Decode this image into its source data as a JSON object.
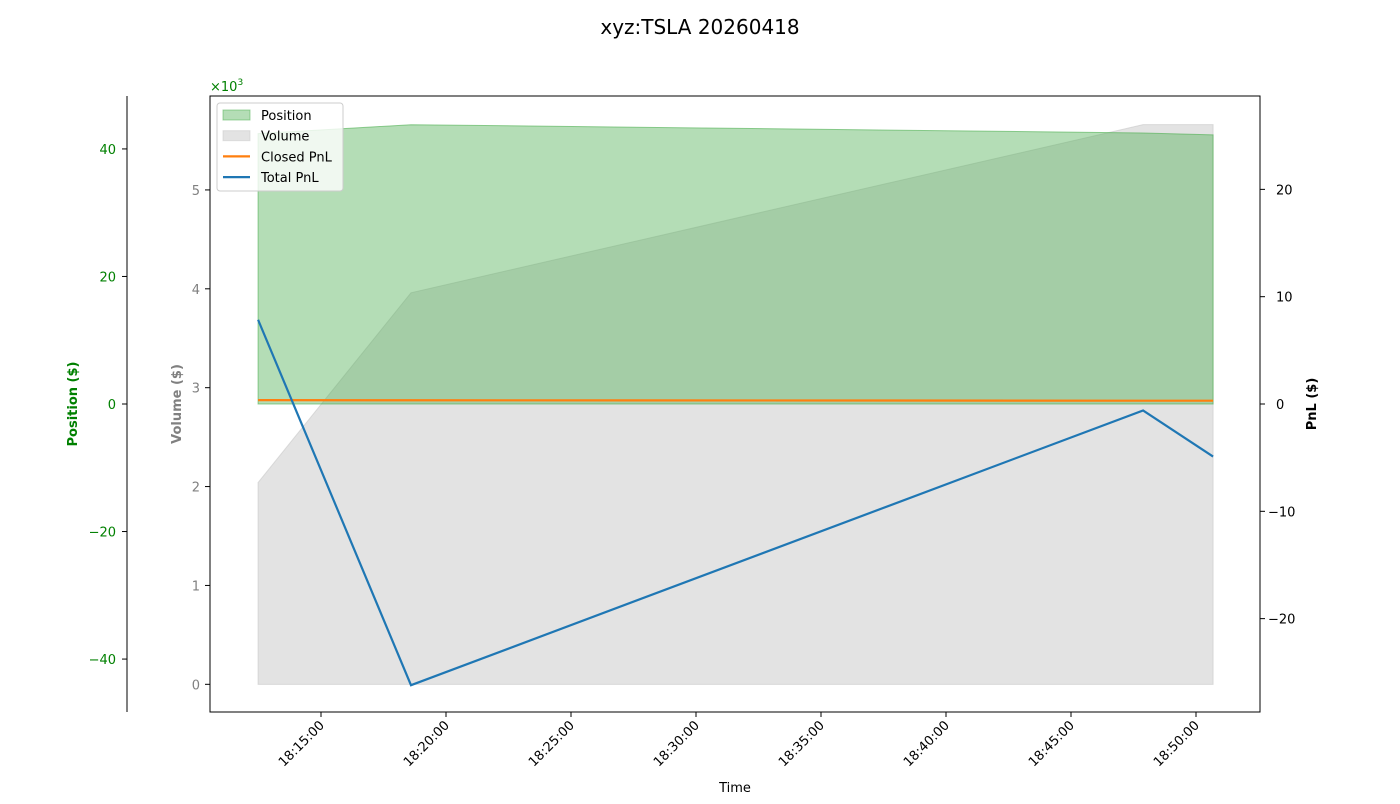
{
  "chart_data": {
    "type": "line",
    "title": "xyz:TSLA 20260418",
    "xlabel": "Time",
    "x": [
      "18:12:29",
      "18:18:36",
      "18:47:53",
      "18:50:41"
    ],
    "x_ticks": [
      "18:15:00",
      "18:20:00",
      "18:25:00",
      "18:30:00",
      "18:35:00",
      "18:40:00",
      "18:45:00",
      "18:50:00"
    ],
    "axes": {
      "position": {
        "label": "Position ($)",
        "ticks": [
          40,
          20,
          0,
          -20,
          -40
        ],
        "ylim": [
          -48.3,
          48.3
        ],
        "color": "#008000"
      },
      "volume": {
        "label": "Volume ($)",
        "ticks": [
          0,
          1,
          2,
          3,
          4,
          5
        ],
        "multiplier": "×10",
        "multiplier_exp": "3",
        "ylim": [
          -280,
          5950
        ],
        "color": "#808080"
      },
      "pnl": {
        "label": "PnL ($)",
        "ticks": [
          20,
          10,
          0,
          -10,
          -20
        ],
        "ylim": [
          -28.7,
          28.7
        ],
        "color": "#000000"
      }
    },
    "series": [
      {
        "name": "Position",
        "kind": "area",
        "axis": "position",
        "values": [
          42.4,
          43.8,
          42.5,
          42.2
        ],
        "color": "#4caf50"
      },
      {
        "name": "Volume",
        "kind": "area",
        "axis": "volume",
        "values": [
          2040,
          3960,
          5660,
          5660
        ],
        "color": "#c8c8c8"
      },
      {
        "name": "Closed PnL",
        "kind": "line",
        "axis": "pnl",
        "values": [
          0.36,
          0.35,
          0.31,
          0.31
        ],
        "color": "#ff7f0e"
      },
      {
        "name": "Total PnL",
        "kind": "line",
        "axis": "pnl",
        "values": [
          7.85,
          -26.2,
          -0.6,
          -4.9
        ],
        "color": "#1f77b4"
      }
    ],
    "legend_placement": "top-left",
    "grid": false
  }
}
